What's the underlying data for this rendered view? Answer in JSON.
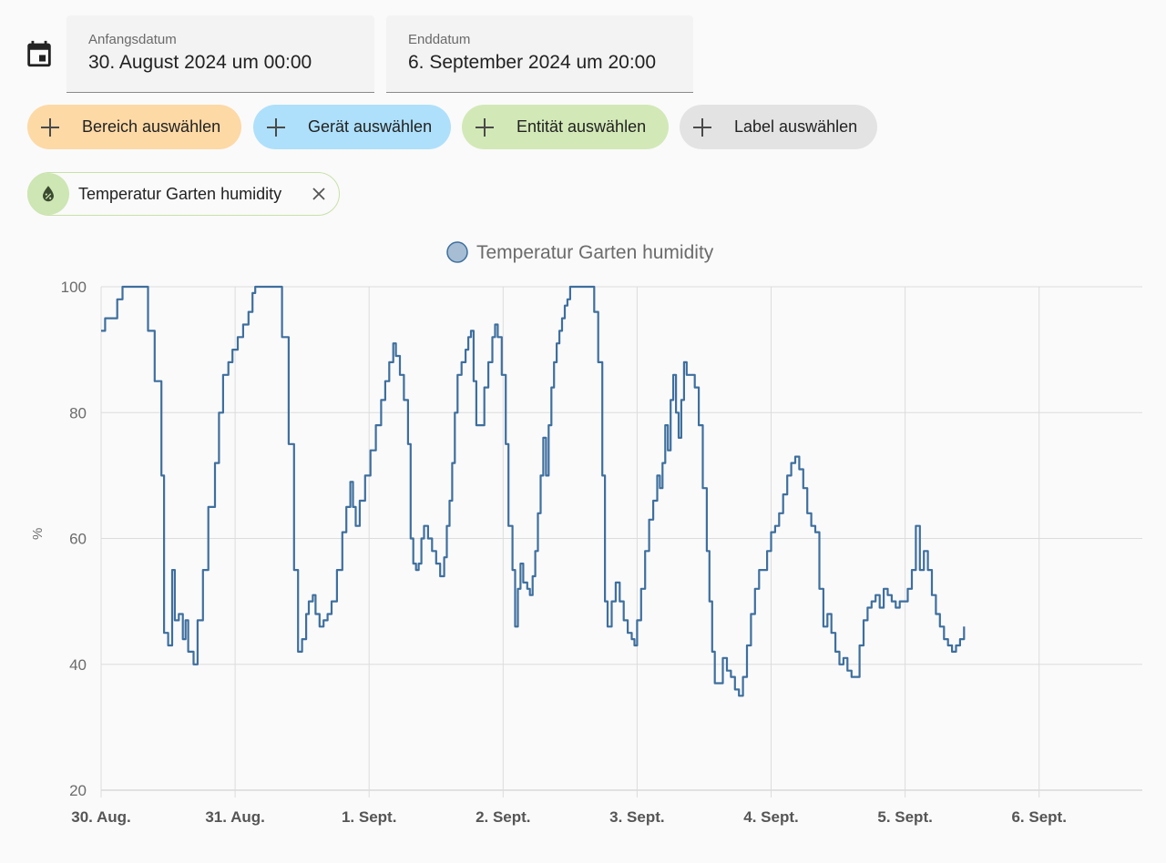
{
  "icons": {
    "calendar": "calendar-icon",
    "plus": "plus-icon",
    "entity": "water-percent-icon",
    "close": "close-icon"
  },
  "date_range": {
    "start_label": "Anfangsdatum",
    "start_value": "30. August 2024 um 00:00",
    "end_label": "Enddatum",
    "end_value": "6. September 2024 um 20:00"
  },
  "pickers": {
    "area": "Bereich auswählen",
    "device": "Gerät auswählen",
    "entity": "Entität auswählen",
    "label": "Label auswählen"
  },
  "colors": {
    "area": "#fdd9a6",
    "device": "#aee0fb",
    "entity": "#d2e9b7",
    "label": "#e3e3e3",
    "series": "#3e6f9e"
  },
  "selected_entity": {
    "name": "Temperatur Garten humidity"
  },
  "chart_data": {
    "type": "line",
    "series": [
      {
        "name": "Temperatur Garten humidity",
        "color": "#3e6f9e",
        "points": [
          [
            0.0,
            93
          ],
          [
            0.03,
            95
          ],
          [
            0.08,
            95
          ],
          [
            0.12,
            98
          ],
          [
            0.16,
            100
          ],
          [
            0.3,
            100
          ],
          [
            0.35,
            93
          ],
          [
            0.4,
            85
          ],
          [
            0.45,
            70
          ],
          [
            0.47,
            45
          ],
          [
            0.5,
            43
          ],
          [
            0.53,
            55
          ],
          [
            0.55,
            47
          ],
          [
            0.58,
            48
          ],
          [
            0.61,
            44
          ],
          [
            0.63,
            47
          ],
          [
            0.65,
            42
          ],
          [
            0.69,
            40
          ],
          [
            0.72,
            47
          ],
          [
            0.76,
            55
          ],
          [
            0.8,
            65
          ],
          [
            0.85,
            72
          ],
          [
            0.88,
            80
          ],
          [
            0.91,
            86
          ],
          [
            0.95,
            88
          ],
          [
            0.98,
            90
          ],
          [
            1.02,
            92
          ],
          [
            1.06,
            94
          ],
          [
            1.1,
            96
          ],
          [
            1.13,
            99
          ],
          [
            1.15,
            100
          ],
          [
            1.3,
            100
          ],
          [
            1.35,
            92
          ],
          [
            1.4,
            75
          ],
          [
            1.44,
            55
          ],
          [
            1.47,
            42
          ],
          [
            1.5,
            44
          ],
          [
            1.53,
            48
          ],
          [
            1.55,
            50
          ],
          [
            1.58,
            51
          ],
          [
            1.6,
            48
          ],
          [
            1.63,
            46
          ],
          [
            1.66,
            47
          ],
          [
            1.69,
            48
          ],
          [
            1.72,
            50
          ],
          [
            1.76,
            55
          ],
          [
            1.8,
            61
          ],
          [
            1.83,
            65
          ],
          [
            1.86,
            69
          ],
          [
            1.88,
            65
          ],
          [
            1.9,
            62
          ],
          [
            1.93,
            66
          ],
          [
            1.97,
            70
          ],
          [
            2.01,
            74
          ],
          [
            2.05,
            78
          ],
          [
            2.09,
            82
          ],
          [
            2.12,
            85
          ],
          [
            2.15,
            88
          ],
          [
            2.18,
            91
          ],
          [
            2.2,
            89
          ],
          [
            2.23,
            86
          ],
          [
            2.26,
            82
          ],
          [
            2.29,
            75
          ],
          [
            2.31,
            60
          ],
          [
            2.33,
            56
          ],
          [
            2.35,
            55
          ],
          [
            2.37,
            56
          ],
          [
            2.39,
            60
          ],
          [
            2.41,
            62
          ],
          [
            2.44,
            60
          ],
          [
            2.47,
            58
          ],
          [
            2.5,
            56
          ],
          [
            2.53,
            54
          ],
          [
            2.56,
            57
          ],
          [
            2.58,
            62
          ],
          [
            2.6,
            66
          ],
          [
            2.62,
            72
          ],
          [
            2.64,
            80
          ],
          [
            2.66,
            86
          ],
          [
            2.69,
            88
          ],
          [
            2.72,
            90
          ],
          [
            2.74,
            92
          ],
          [
            2.76,
            93
          ],
          [
            2.78,
            85
          ],
          [
            2.8,
            78
          ],
          [
            2.83,
            78
          ],
          [
            2.86,
            84
          ],
          [
            2.89,
            88
          ],
          [
            2.92,
            92
          ],
          [
            2.94,
            94
          ],
          [
            2.96,
            92
          ],
          [
            2.99,
            86
          ],
          [
            3.02,
            75
          ],
          [
            3.04,
            62
          ],
          [
            3.07,
            55
          ],
          [
            3.09,
            46
          ],
          [
            3.11,
            52
          ],
          [
            3.13,
            56
          ],
          [
            3.15,
            53
          ],
          [
            3.18,
            52
          ],
          [
            3.2,
            51
          ],
          [
            3.22,
            54
          ],
          [
            3.24,
            58
          ],
          [
            3.26,
            64
          ],
          [
            3.28,
            70
          ],
          [
            3.3,
            76
          ],
          [
            3.32,
            70
          ],
          [
            3.34,
            78
          ],
          [
            3.36,
            84
          ],
          [
            3.38,
            88
          ],
          [
            3.4,
            91
          ],
          [
            3.42,
            93
          ],
          [
            3.44,
            95
          ],
          [
            3.46,
            97
          ],
          [
            3.48,
            98
          ],
          [
            3.5,
            100
          ],
          [
            3.64,
            100
          ],
          [
            3.68,
            96
          ],
          [
            3.71,
            88
          ],
          [
            3.74,
            70
          ],
          [
            3.76,
            50
          ],
          [
            3.78,
            46
          ],
          [
            3.81,
            50
          ],
          [
            3.84,
            53
          ],
          [
            3.87,
            50
          ],
          [
            3.9,
            47
          ],
          [
            3.93,
            45
          ],
          [
            3.96,
            44
          ],
          [
            3.98,
            43
          ],
          [
            4.0,
            47
          ],
          [
            4.03,
            52
          ],
          [
            4.06,
            58
          ],
          [
            4.09,
            63
          ],
          [
            4.12,
            66
          ],
          [
            4.15,
            70
          ],
          [
            4.17,
            68
          ],
          [
            4.19,
            72
          ],
          [
            4.21,
            78
          ],
          [
            4.23,
            74
          ],
          [
            4.25,
            82
          ],
          [
            4.27,
            86
          ],
          [
            4.29,
            80
          ],
          [
            4.31,
            76
          ],
          [
            4.33,
            82
          ],
          [
            4.35,
            88
          ],
          [
            4.37,
            86
          ],
          [
            4.4,
            86
          ],
          [
            4.43,
            84
          ],
          [
            4.46,
            78
          ],
          [
            4.49,
            68
          ],
          [
            4.52,
            58
          ],
          [
            4.54,
            50
          ],
          [
            4.56,
            42
          ],
          [
            4.58,
            37
          ],
          [
            4.61,
            37
          ],
          [
            4.64,
            41
          ],
          [
            4.67,
            39
          ],
          [
            4.7,
            38
          ],
          [
            4.73,
            36
          ],
          [
            4.76,
            35
          ],
          [
            4.79,
            38
          ],
          [
            4.82,
            43
          ],
          [
            4.85,
            48
          ],
          [
            4.88,
            52
          ],
          [
            4.91,
            55
          ],
          [
            4.94,
            55
          ],
          [
            4.97,
            58
          ],
          [
            5.0,
            61
          ],
          [
            5.03,
            62
          ],
          [
            5.06,
            64
          ],
          [
            5.09,
            67
          ],
          [
            5.12,
            70
          ],
          [
            5.15,
            72
          ],
          [
            5.18,
            73
          ],
          [
            5.21,
            71
          ],
          [
            5.24,
            68
          ],
          [
            5.27,
            64
          ],
          [
            5.3,
            62
          ],
          [
            5.33,
            61
          ],
          [
            5.36,
            52
          ],
          [
            5.39,
            46
          ],
          [
            5.42,
            48
          ],
          [
            5.45,
            45
          ],
          [
            5.48,
            42
          ],
          [
            5.51,
            40
          ],
          [
            5.54,
            41
          ],
          [
            5.57,
            39
          ],
          [
            5.6,
            38
          ],
          [
            5.63,
            38
          ],
          [
            5.66,
            43
          ],
          [
            5.69,
            47
          ],
          [
            5.72,
            49
          ],
          [
            5.75,
            50
          ],
          [
            5.78,
            51
          ],
          [
            5.81,
            49
          ],
          [
            5.84,
            52
          ],
          [
            5.87,
            51
          ],
          [
            5.9,
            50
          ],
          [
            5.93,
            49
          ],
          [
            5.96,
            50
          ],
          [
            5.99,
            50
          ],
          [
            6.02,
            52
          ],
          [
            6.05,
            55
          ],
          [
            6.08,
            62
          ],
          [
            6.11,
            55
          ],
          [
            6.14,
            58
          ],
          [
            6.17,
            55
          ],
          [
            6.2,
            51
          ],
          [
            6.23,
            48
          ],
          [
            6.26,
            46
          ],
          [
            6.29,
            44
          ],
          [
            6.32,
            43
          ],
          [
            6.35,
            42
          ],
          [
            6.38,
            43
          ],
          [
            6.41,
            44
          ],
          [
            6.44,
            46
          ]
        ]
      }
    ],
    "x_ticks": [
      "30. Aug.",
      "31. Aug.",
      "1. Sept.",
      "2. Sept.",
      "3. Sept.",
      "4. Sept.",
      "5. Sept.",
      "6. Sept."
    ],
    "xlim": [
      0,
      7.8
    ],
    "y_ticks": [
      20,
      40,
      60,
      80,
      100
    ],
    "ylim": [
      20,
      100
    ],
    "ylabel": "%",
    "grid": true,
    "legend_position": "top-center"
  }
}
